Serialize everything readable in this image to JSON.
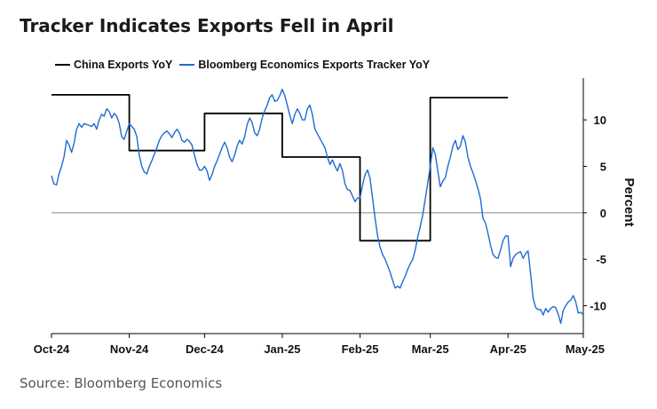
{
  "title": "Tracker Indicates Exports Fell in April",
  "source": "Source: Bloomberg Economics",
  "chart_data": {
    "type": "line",
    "ylabel": "Percent",
    "ylim": [
      -13,
      14.5
    ],
    "yticks": [
      10,
      5,
      0,
      -5,
      -10
    ],
    "y_axis_side": "right",
    "x_ticks": [
      {
        "label": "Oct-24",
        "date": "2024-10-01"
      },
      {
        "label": "Nov-24",
        "date": "2024-11-01"
      },
      {
        "label": "Dec-24",
        "date": "2024-12-01"
      },
      {
        "label": "Jan-25",
        "date": "2025-01-01"
      },
      {
        "label": "Feb-25",
        "date": "2025-02-01"
      },
      {
        "label": "Mar-25",
        "date": "2025-03-01"
      },
      {
        "label": "Apr-25",
        "date": "2025-04-01"
      },
      {
        "label": "May-25",
        "date": "2025-05-01"
      }
    ],
    "xlim": [
      "2024-10-01",
      "2025-05-01"
    ],
    "zero_line": true,
    "grid": false,
    "legend_position": "top-left",
    "series": [
      {
        "name": "China Exports YoY",
        "color": "#000000",
        "style": "step",
        "points": [
          [
            "2024-10-01",
            12.7
          ],
          [
            "2024-11-01",
            12.7
          ],
          [
            "2024-11-01",
            6.7
          ],
          [
            "2024-12-01",
            6.7
          ],
          [
            "2024-12-01",
            10.7
          ],
          [
            "2025-01-01",
            10.7
          ],
          [
            "2025-01-01",
            6.0
          ],
          [
            "2025-02-01",
            6.0
          ],
          [
            "2025-02-01",
            -3.0
          ],
          [
            "2025-03-01",
            -3.0
          ],
          [
            "2025-03-01",
            12.4
          ],
          [
            "2025-04-01",
            12.4
          ]
        ]
      },
      {
        "name": "Bloomberg Economics Exports Tracker YoY",
        "color": "#1f6bd1",
        "style": "line",
        "points": [
          [
            "2024-10-01",
            4.0
          ],
          [
            "2024-10-02",
            3.1
          ],
          [
            "2024-10-03",
            3.0
          ],
          [
            "2024-10-04",
            4.2
          ],
          [
            "2024-10-05",
            5.0
          ],
          [
            "2024-10-06",
            6.0
          ],
          [
            "2024-10-07",
            7.8
          ],
          [
            "2024-10-08",
            7.3
          ],
          [
            "2024-10-09",
            6.5
          ],
          [
            "2024-10-10",
            7.5
          ],
          [
            "2024-10-11",
            9.0
          ],
          [
            "2024-10-12",
            9.6
          ],
          [
            "2024-10-13",
            9.2
          ],
          [
            "2024-10-14",
            9.6
          ],
          [
            "2024-10-15",
            9.5
          ],
          [
            "2024-10-16",
            9.4
          ],
          [
            "2024-10-17",
            9.3
          ],
          [
            "2024-10-18",
            9.6
          ],
          [
            "2024-10-19",
            9.0
          ],
          [
            "2024-10-20",
            10.0
          ],
          [
            "2024-10-21",
            10.6
          ],
          [
            "2024-10-22",
            10.4
          ],
          [
            "2024-10-23",
            11.2
          ],
          [
            "2024-10-24",
            10.9
          ],
          [
            "2024-10-25",
            10.2
          ],
          [
            "2024-10-26",
            10.7
          ],
          [
            "2024-10-27",
            10.4
          ],
          [
            "2024-10-28",
            9.6
          ],
          [
            "2024-10-29",
            8.2
          ],
          [
            "2024-10-30",
            7.9
          ],
          [
            "2024-10-31",
            8.8
          ],
          [
            "2024-11-01",
            9.6
          ],
          [
            "2024-11-02",
            9.3
          ],
          [
            "2024-11-03",
            9.0
          ],
          [
            "2024-11-04",
            8.2
          ],
          [
            "2024-11-05",
            6.2
          ],
          [
            "2024-11-06",
            5.0
          ],
          [
            "2024-11-07",
            4.4
          ],
          [
            "2024-11-08",
            4.2
          ],
          [
            "2024-11-09",
            5.0
          ],
          [
            "2024-11-10",
            5.6
          ],
          [
            "2024-11-11",
            6.3
          ],
          [
            "2024-11-12",
            7.0
          ],
          [
            "2024-11-13",
            7.8
          ],
          [
            "2024-11-14",
            8.3
          ],
          [
            "2024-11-15",
            8.6
          ],
          [
            "2024-11-16",
            8.8
          ],
          [
            "2024-11-17",
            8.5
          ],
          [
            "2024-11-18",
            8.1
          ],
          [
            "2024-11-19",
            8.6
          ],
          [
            "2024-11-20",
            9.0
          ],
          [
            "2024-11-21",
            8.6
          ],
          [
            "2024-11-22",
            7.8
          ],
          [
            "2024-11-23",
            7.6
          ],
          [
            "2024-11-24",
            7.9
          ],
          [
            "2024-11-25",
            7.7
          ],
          [
            "2024-11-26",
            7.3
          ],
          [
            "2024-11-27",
            6.2
          ],
          [
            "2024-11-28",
            5.2
          ],
          [
            "2024-11-29",
            4.6
          ],
          [
            "2024-11-30",
            4.6
          ],
          [
            "2024-12-01",
            5.0
          ],
          [
            "2024-12-02",
            4.5
          ],
          [
            "2024-12-03",
            3.5
          ],
          [
            "2024-12-04",
            4.1
          ],
          [
            "2024-12-05",
            5.0
          ],
          [
            "2024-12-06",
            5.6
          ],
          [
            "2024-12-07",
            6.3
          ],
          [
            "2024-12-08",
            7.0
          ],
          [
            "2024-12-09",
            7.6
          ],
          [
            "2024-12-10",
            7.0
          ],
          [
            "2024-12-11",
            6.0
          ],
          [
            "2024-12-12",
            5.5
          ],
          [
            "2024-12-13",
            6.2
          ],
          [
            "2024-12-14",
            7.2
          ],
          [
            "2024-12-15",
            7.8
          ],
          [
            "2024-12-16",
            7.4
          ],
          [
            "2024-12-17",
            8.2
          ],
          [
            "2024-12-18",
            9.5
          ],
          [
            "2024-12-19",
            10.2
          ],
          [
            "2024-12-20",
            9.7
          ],
          [
            "2024-12-21",
            8.6
          ],
          [
            "2024-12-22",
            8.3
          ],
          [
            "2024-12-23",
            9.0
          ],
          [
            "2024-12-24",
            10.2
          ],
          [
            "2024-12-25",
            11.0
          ],
          [
            "2024-12-26",
            11.6
          ],
          [
            "2024-12-27",
            12.4
          ],
          [
            "2024-12-28",
            12.7
          ],
          [
            "2024-12-29",
            12.0
          ],
          [
            "2024-12-30",
            12.1
          ],
          [
            "2024-12-31",
            12.6
          ],
          [
            "2025-01-01",
            13.3
          ],
          [
            "2025-01-02",
            12.6
          ],
          [
            "2025-01-03",
            11.6
          ],
          [
            "2025-01-04",
            10.5
          ],
          [
            "2025-01-05",
            9.6
          ],
          [
            "2025-01-06",
            10.6
          ],
          [
            "2025-01-07",
            11.2
          ],
          [
            "2025-01-08",
            10.7
          ],
          [
            "2025-01-09",
            10.0
          ],
          [
            "2025-01-10",
            10.0
          ],
          [
            "2025-01-11",
            11.2
          ],
          [
            "2025-01-12",
            11.6
          ],
          [
            "2025-01-13",
            10.6
          ],
          [
            "2025-01-14",
            9.0
          ],
          [
            "2025-01-15",
            8.5
          ],
          [
            "2025-01-16",
            8.0
          ],
          [
            "2025-01-17",
            7.5
          ],
          [
            "2025-01-18",
            7.0
          ],
          [
            "2025-01-19",
            6.0
          ],
          [
            "2025-01-20",
            5.2
          ],
          [
            "2025-01-21",
            5.7
          ],
          [
            "2025-01-22",
            5.0
          ],
          [
            "2025-01-23",
            4.5
          ],
          [
            "2025-01-24",
            5.3
          ],
          [
            "2025-01-25",
            4.5
          ],
          [
            "2025-01-26",
            3.1
          ],
          [
            "2025-01-27",
            2.5
          ],
          [
            "2025-01-28",
            2.4
          ],
          [
            "2025-01-29",
            1.8
          ],
          [
            "2025-01-30",
            1.2
          ],
          [
            "2025-01-31",
            1.6
          ],
          [
            "2025-02-01",
            1.6
          ],
          [
            "2025-02-02",
            3.0
          ],
          [
            "2025-02-03",
            4.1
          ],
          [
            "2025-02-04",
            4.6
          ],
          [
            "2025-02-05",
            3.7
          ],
          [
            "2025-02-06",
            1.5
          ],
          [
            "2025-02-07",
            -0.6
          ],
          [
            "2025-02-08",
            -2.5
          ],
          [
            "2025-02-09",
            -3.7
          ],
          [
            "2025-02-10",
            -4.5
          ],
          [
            "2025-02-11",
            -5.0
          ],
          [
            "2025-02-12",
            -5.7
          ],
          [
            "2025-02-13",
            -6.4
          ],
          [
            "2025-02-14",
            -7.3
          ],
          [
            "2025-02-15",
            -8.1
          ],
          [
            "2025-02-16",
            -7.9
          ],
          [
            "2025-02-17",
            -8.1
          ],
          [
            "2025-02-18",
            -7.4
          ],
          [
            "2025-02-19",
            -6.8
          ],
          [
            "2025-02-20",
            -6.1
          ],
          [
            "2025-02-21",
            -5.5
          ],
          [
            "2025-02-22",
            -5.0
          ],
          [
            "2025-02-23",
            -4.0
          ],
          [
            "2025-02-24",
            -2.6
          ],
          [
            "2025-02-25",
            -1.5
          ],
          [
            "2025-02-26",
            -0.2
          ],
          [
            "2025-02-27",
            1.5
          ],
          [
            "2025-02-28",
            3.2
          ],
          [
            "2025-03-01",
            5.0
          ],
          [
            "2025-03-02",
            7.0
          ],
          [
            "2025-03-03",
            6.3
          ],
          [
            "2025-03-04",
            4.5
          ],
          [
            "2025-03-05",
            2.8
          ],
          [
            "2025-03-06",
            3.4
          ],
          [
            "2025-03-07",
            3.8
          ],
          [
            "2025-03-08",
            5.0
          ],
          [
            "2025-03-09",
            6.0
          ],
          [
            "2025-03-10",
            7.2
          ],
          [
            "2025-03-11",
            7.8
          ],
          [
            "2025-03-12",
            6.8
          ],
          [
            "2025-03-13",
            7.2
          ],
          [
            "2025-03-14",
            8.3
          ],
          [
            "2025-03-15",
            7.6
          ],
          [
            "2025-03-16",
            6.0
          ],
          [
            "2025-03-17",
            5.0
          ],
          [
            "2025-03-18",
            4.3
          ],
          [
            "2025-03-19",
            3.5
          ],
          [
            "2025-03-20",
            2.6
          ],
          [
            "2025-03-21",
            1.5
          ],
          [
            "2025-03-22",
            -0.6
          ],
          [
            "2025-03-23",
            -1.1
          ],
          [
            "2025-03-24",
            -2.2
          ],
          [
            "2025-03-25",
            -3.5
          ],
          [
            "2025-03-26",
            -4.5
          ],
          [
            "2025-03-27",
            -4.8
          ],
          [
            "2025-03-28",
            -4.9
          ],
          [
            "2025-03-29",
            -4.0
          ],
          [
            "2025-03-30",
            -3.0
          ],
          [
            "2025-03-31",
            -2.5
          ],
          [
            "2025-04-01",
            -2.5
          ],
          [
            "2025-04-02",
            -5.8
          ],
          [
            "2025-04-03",
            -4.9
          ],
          [
            "2025-04-04",
            -4.5
          ],
          [
            "2025-04-05",
            -4.3
          ],
          [
            "2025-04-06",
            -4.2
          ],
          [
            "2025-04-07",
            -4.9
          ],
          [
            "2025-04-08",
            -4.4
          ],
          [
            "2025-04-09",
            -4.1
          ],
          [
            "2025-04-10",
            -6.6
          ],
          [
            "2025-04-11",
            -9.2
          ],
          [
            "2025-04-12",
            -10.2
          ],
          [
            "2025-04-13",
            -10.4
          ],
          [
            "2025-04-14",
            -10.4
          ],
          [
            "2025-04-15",
            -11.0
          ],
          [
            "2025-04-16",
            -10.3
          ],
          [
            "2025-04-17",
            -10.7
          ],
          [
            "2025-04-18",
            -10.3
          ],
          [
            "2025-04-19",
            -10.1
          ],
          [
            "2025-04-20",
            -10.2
          ],
          [
            "2025-04-21",
            -10.9
          ],
          [
            "2025-04-22",
            -11.9
          ],
          [
            "2025-04-23",
            -10.5
          ],
          [
            "2025-04-24",
            -10.0
          ],
          [
            "2025-04-25",
            -9.6
          ],
          [
            "2025-04-26",
            -9.4
          ],
          [
            "2025-04-27",
            -8.9
          ],
          [
            "2025-04-28",
            -9.6
          ],
          [
            "2025-04-29",
            -10.8
          ],
          [
            "2025-04-30",
            -10.7
          ],
          [
            "2025-05-01",
            -11.0
          ]
        ]
      }
    ]
  }
}
